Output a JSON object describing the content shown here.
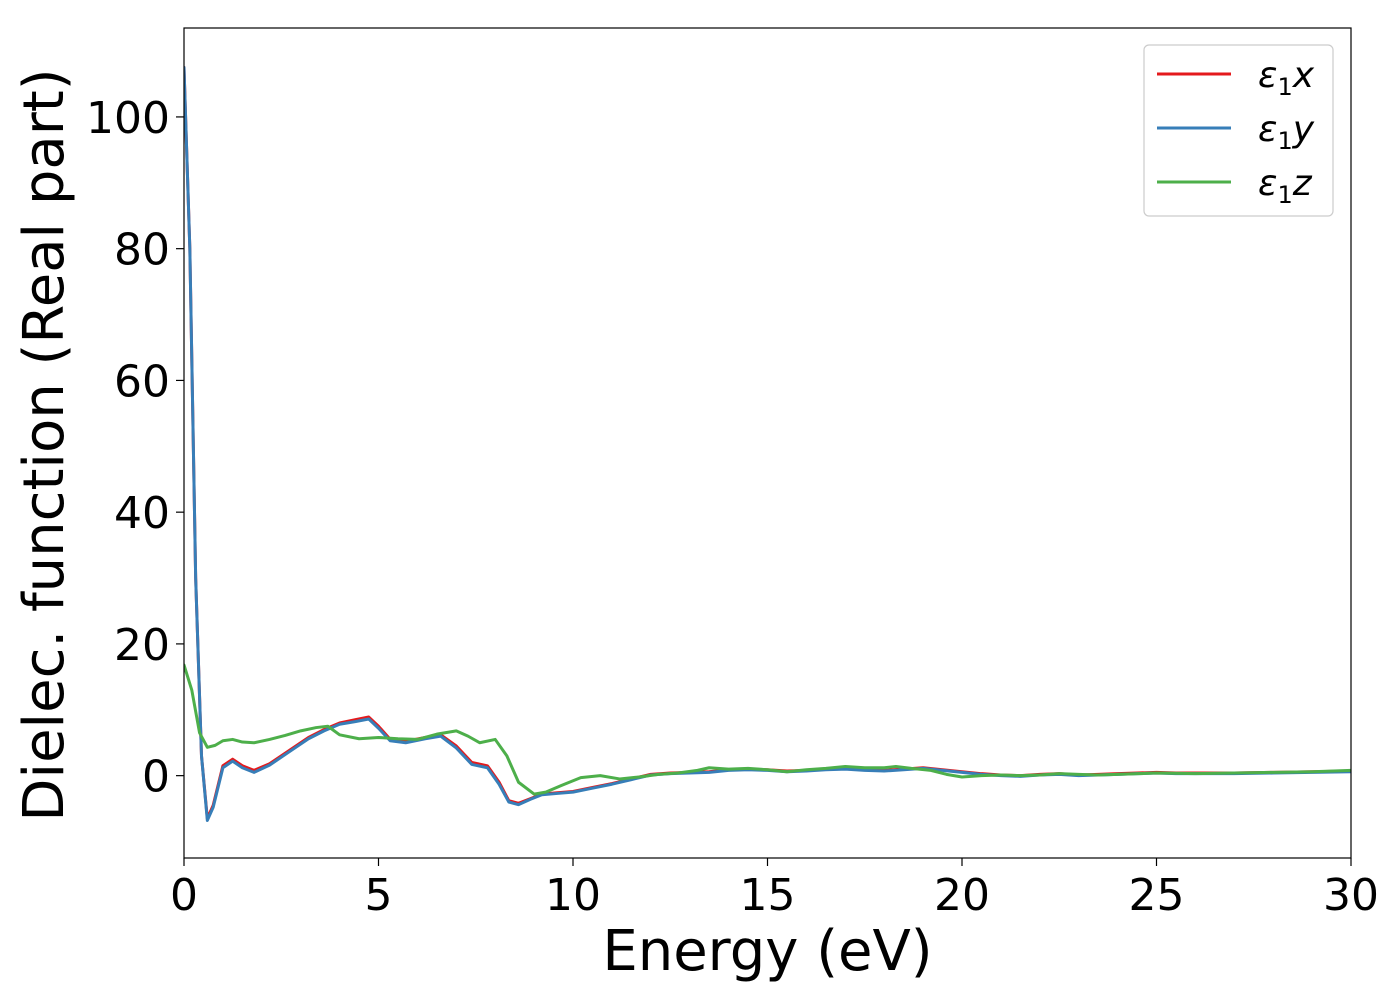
{
  "chart_data": {
    "type": "line",
    "title": "",
    "xlabel": "Energy (eV)",
    "ylabel": "Dielec. function (Real part)",
    "xlim": [
      0,
      30
    ],
    "ylim": [
      -12.5,
      113.5
    ],
    "xticks": [
      0,
      5,
      10,
      15,
      20,
      25,
      30
    ],
    "yticks": [
      0,
      20,
      40,
      60,
      80,
      100
    ],
    "grid": false,
    "legend_position": "top-right",
    "series": [
      {
        "name": "ε₁x",
        "legend_base": "ε",
        "legend_sub": "1",
        "legend_var": "x",
        "color": "#e41a1c",
        "x": [
          0,
          0.15,
          0.3,
          0.45,
          0.6,
          0.75,
          1.0,
          1.25,
          1.5,
          1.8,
          2.2,
          2.7,
          3.2,
          3.6,
          4.0,
          4.4,
          4.75,
          5.0,
          5.3,
          5.7,
          6.2,
          6.6,
          7.0,
          7.4,
          7.8,
          8.1,
          8.35,
          8.6,
          8.9,
          9.2,
          9.6,
          10.0,
          10.5,
          11.0,
          11.5,
          12.0,
          12.5,
          13.0,
          13.5,
          14.0,
          14.5,
          15.0,
          15.5,
          16.0,
          16.5,
          17.0,
          17.5,
          18.0,
          18.5,
          19.0,
          19.5,
          20.0,
          20.5,
          21.0,
          21.5,
          22.0,
          22.5,
          23.0,
          23.5,
          24.0,
          24.5,
          25.0,
          25.5,
          26.0,
          27.0,
          28.0,
          29.0,
          30.0
        ],
        "values": [
          107.5,
          80,
          30,
          3,
          -6.5,
          -4.5,
          1.5,
          2.5,
          1.5,
          0.8,
          1.8,
          3.8,
          5.8,
          7.0,
          8.0,
          8.5,
          8.9,
          7.5,
          5.5,
          5.2,
          5.8,
          6.2,
          4.5,
          2.0,
          1.5,
          -1.0,
          -3.8,
          -4.2,
          -3.5,
          -2.8,
          -2.6,
          -2.4,
          -1.8,
          -1.2,
          -0.5,
          0.2,
          0.4,
          0.5,
          0.6,
          0.9,
          1.0,
          0.9,
          0.7,
          0.8,
          1.0,
          1.1,
          0.9,
          0.8,
          1.0,
          1.2,
          0.9,
          0.6,
          0.3,
          0.1,
          0.0,
          0.2,
          0.3,
          0.1,
          0.2,
          0.3,
          0.4,
          0.5,
          0.4,
          0.4,
          0.4,
          0.5,
          0.6,
          0.7
        ]
      },
      {
        "name": "ε₁y",
        "legend_base": "ε",
        "legend_sub": "1",
        "legend_var": "y",
        "color": "#377eb8",
        "x": [
          0,
          0.15,
          0.3,
          0.45,
          0.6,
          0.75,
          1.0,
          1.25,
          1.5,
          1.8,
          2.2,
          2.7,
          3.2,
          3.6,
          4.0,
          4.4,
          4.75,
          5.0,
          5.3,
          5.7,
          6.2,
          6.6,
          7.0,
          7.4,
          7.8,
          8.1,
          8.35,
          8.6,
          8.9,
          9.2,
          9.6,
          10.0,
          10.5,
          11.0,
          11.5,
          12.0,
          12.5,
          13.0,
          13.5,
          14.0,
          14.5,
          15.0,
          15.5,
          16.0,
          16.5,
          17.0,
          17.5,
          18.0,
          18.5,
          19.0,
          19.5,
          20.0,
          20.5,
          21.0,
          21.5,
          22.0,
          22.5,
          23.0,
          23.5,
          24.0,
          24.5,
          25.0,
          25.5,
          26.0,
          27.0,
          28.0,
          29.0,
          30.0
        ],
        "values": [
          107.5,
          80,
          30,
          3,
          -6.8,
          -4.8,
          1.2,
          2.2,
          1.2,
          0.5,
          1.6,
          3.6,
          5.6,
          6.8,
          7.8,
          8.2,
          8.6,
          7.2,
          5.3,
          5.0,
          5.6,
          6.0,
          4.2,
          1.7,
          1.2,
          -1.3,
          -4.0,
          -4.4,
          -3.6,
          -2.9,
          -2.7,
          -2.5,
          -1.9,
          -1.3,
          -0.6,
          0.1,
          0.3,
          0.4,
          0.5,
          0.8,
          0.9,
          0.8,
          0.6,
          0.7,
          0.9,
          1.0,
          0.8,
          0.7,
          0.9,
          1.1,
          0.8,
          0.5,
          0.2,
          0.0,
          -0.1,
          0.1,
          0.2,
          0.0,
          0.1,
          0.2,
          0.3,
          0.4,
          0.3,
          0.3,
          0.3,
          0.4,
          0.5,
          0.6
        ]
      },
      {
        "name": "ε₁z",
        "legend_base": "ε",
        "legend_sub": "1",
        "legend_var": "z",
        "color": "#4daf4a",
        "x": [
          0,
          0.2,
          0.4,
          0.6,
          0.8,
          1.0,
          1.25,
          1.5,
          1.8,
          2.2,
          2.6,
          3.0,
          3.4,
          3.7,
          4.0,
          4.5,
          5.0,
          5.5,
          6.0,
          6.5,
          7.0,
          7.3,
          7.6,
          8.0,
          8.3,
          8.6,
          9.0,
          9.3,
          9.7,
          10.2,
          10.7,
          11.2,
          11.7,
          12.2,
          12.7,
          13.2,
          13.5,
          14.0,
          14.5,
          15.0,
          15.5,
          16.0,
          16.5,
          17.0,
          17.5,
          18.0,
          18.3,
          18.7,
          19.2,
          19.6,
          20.0,
          20.5,
          21.0,
          21.5,
          22.0,
          22.5,
          23.0,
          23.5,
          24.0,
          25.0,
          26.0,
          27.0,
          28.0,
          29.0,
          30.0
        ],
        "values": [
          16.8,
          13,
          6.5,
          4.3,
          4.6,
          5.3,
          5.5,
          5.1,
          5.0,
          5.5,
          6.1,
          6.8,
          7.3,
          7.5,
          6.2,
          5.6,
          5.8,
          5.6,
          5.5,
          6.3,
          6.8,
          6.0,
          5.0,
          5.5,
          3.0,
          -1.0,
          -2.8,
          -2.5,
          -1.5,
          -0.3,
          0.0,
          -0.5,
          -0.2,
          0.2,
          0.4,
          0.8,
          1.2,
          1.0,
          1.1,
          0.9,
          0.6,
          0.9,
          1.1,
          1.4,
          1.2,
          1.2,
          1.4,
          1.1,
          0.8,
          0.2,
          -0.2,
          0.0,
          0.1,
          0.0,
          0.1,
          0.3,
          0.2,
          0.1,
          0.2,
          0.4,
          0.3,
          0.4,
          0.5,
          0.6,
          0.8
        ]
      }
    ]
  }
}
